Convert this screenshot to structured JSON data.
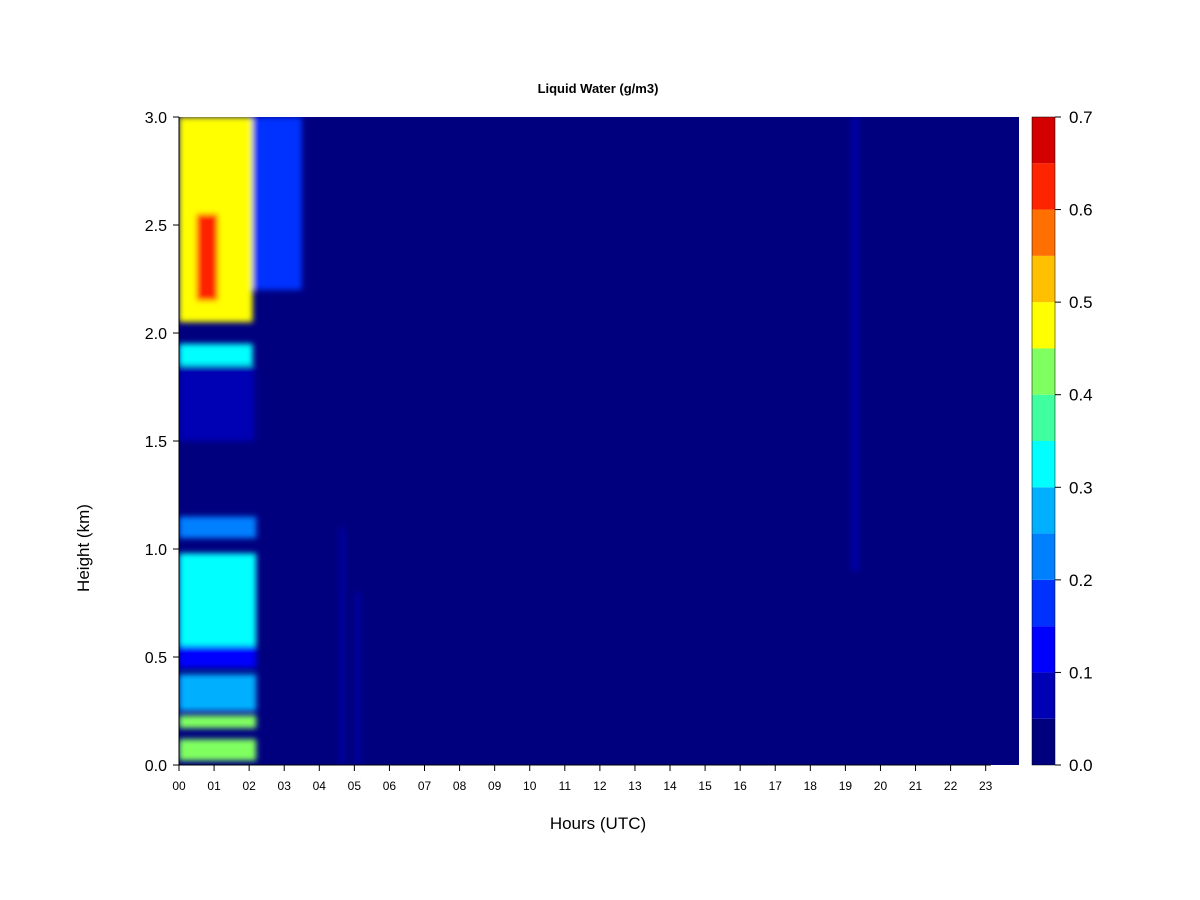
{
  "chart_data": {
    "type": "heatmap",
    "title": "Liquid Water (g/m3)",
    "xlabel": "Hours (UTC)",
    "ylabel": "Height (km)",
    "xlim": [
      0,
      23.95
    ],
    "ylim": [
      0,
      3.0
    ],
    "x_ticks": [
      "00",
      "01",
      "02",
      "03",
      "04",
      "05",
      "06",
      "07",
      "08",
      "09",
      "10",
      "11",
      "12",
      "13",
      "14",
      "15",
      "16",
      "17",
      "18",
      "19",
      "20",
      "21",
      "22",
      "23"
    ],
    "y_ticks": [
      "0.0",
      "0.5",
      "1.0",
      "1.5",
      "2.0",
      "2.5",
      "3.0"
    ],
    "colorbar": {
      "ticks": [
        "0.0",
        "0.1",
        "0.2",
        "0.3",
        "0.4",
        "0.5",
        "0.6",
        "0.7"
      ],
      "levels": [
        0,
        0.05,
        0.1,
        0.15,
        0.2,
        0.25,
        0.3,
        0.35,
        0.4,
        0.45,
        0.5,
        0.55,
        0.6,
        0.65,
        0.7
      ],
      "colors": [
        "#00007f",
        "#0000b4",
        "#0000ff",
        "#0032ff",
        "#0080ff",
        "#00b0ff",
        "#00ffff",
        "#40ffa0",
        "#80ff60",
        "#ffff00",
        "#ffc000",
        "#ff7000",
        "#ff2400",
        "#d40000",
        "#7f0000"
      ]
    },
    "regions": [
      {
        "x": [
          0.0,
          2.1
        ],
        "y": [
          2.05,
          3.0
        ],
        "value": 0.45
      },
      {
        "x": [
          0.5,
          1.1
        ],
        "y": [
          2.15,
          2.55
        ],
        "value": 0.62
      },
      {
        "x": [
          0.0,
          2.1
        ],
        "y": [
          1.85,
          1.95
        ],
        "value": 0.32
      },
      {
        "x": [
          0.0,
          2.15
        ],
        "y": [
          1.5,
          1.85
        ],
        "value": 0.08
      },
      {
        "x": [
          2.1,
          3.5
        ],
        "y": [
          2.2,
          3.0
        ],
        "value": 0.15
      },
      {
        "x": [
          0.0,
          2.2
        ],
        "y": [
          1.05,
          1.15
        ],
        "value": 0.2
      },
      {
        "x": [
          0.0,
          2.2
        ],
        "y": [
          0.55,
          0.98
        ],
        "value": 0.32
      },
      {
        "x": [
          0.0,
          2.2
        ],
        "y": [
          0.45,
          0.55
        ],
        "value": 0.1
      },
      {
        "x": [
          0.0,
          2.2
        ],
        "y": [
          0.25,
          0.42
        ],
        "value": 0.28
      },
      {
        "x": [
          0.0,
          2.2
        ],
        "y": [
          0.17,
          0.23
        ],
        "value": 0.4
      },
      {
        "x": [
          0.0,
          2.2
        ],
        "y": [
          0.02,
          0.12
        ],
        "value": 0.42
      },
      {
        "x": [
          4.6,
          4.7
        ],
        "y": [
          0.0,
          1.1
        ],
        "value": 0.06
      },
      {
        "x": [
          5.05,
          5.15
        ],
        "y": [
          0.0,
          0.8
        ],
        "value": 0.06
      },
      {
        "x": [
          19.2,
          19.35
        ],
        "y": [
          0.9,
          3.0
        ],
        "value": 0.06
      }
    ]
  }
}
